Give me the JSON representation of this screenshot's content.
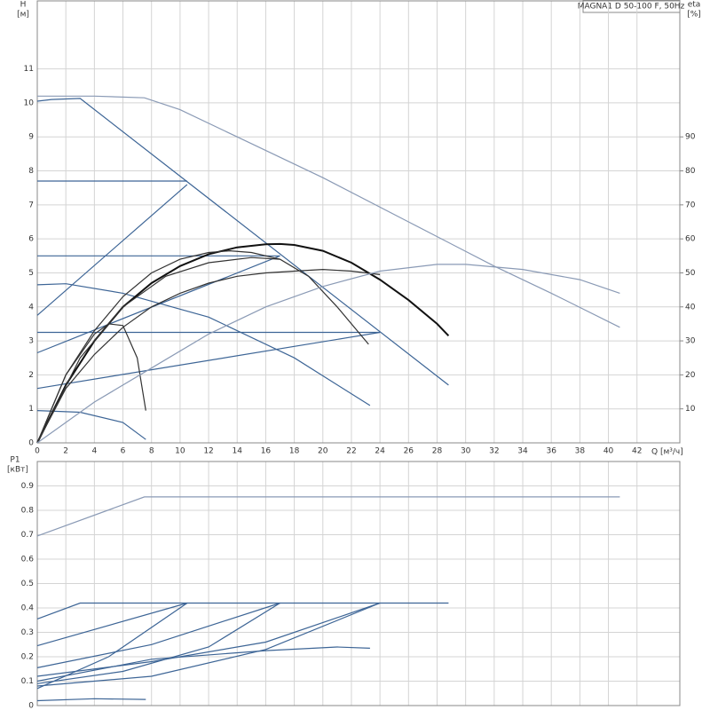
{
  "chart_data": [
    {
      "type": "line",
      "title": "MAGNA1 D 50-100 F, 50Hz",
      "y_label": "H",
      "y_unit": "[м]",
      "y2_label": "eta",
      "y2_unit": "[%]",
      "x_label": "Q [м³/ч]",
      "xlim": [
        0,
        45
      ],
      "xticks": [
        0,
        2,
        4,
        6,
        8,
        10,
        12,
        14,
        16,
        18,
        20,
        22,
        24,
        26,
        28,
        30,
        32,
        34,
        36,
        38,
        40,
        42
      ],
      "ylim": [
        0,
        13
      ],
      "yticks": [
        0,
        1,
        2,
        3,
        4,
        5,
        6,
        7,
        8,
        9,
        10,
        11
      ],
      "y2lim": [
        0,
        130
      ],
      "y2ticks": [
        10,
        20,
        30,
        40,
        50,
        60,
        70,
        80,
        90
      ],
      "grid": true,
      "series": [
        {
          "color": "#3d6596",
          "x": [
            0,
            1,
            3,
            28.8
          ],
          "values": [
            10.05,
            10.1,
            10.13,
            1.7
          ]
        },
        {
          "color": "#3d6596",
          "x": [
            0,
            10.5
          ],
          "values": [
            3.75,
            7.6
          ]
        },
        {
          "color": "#3d6596",
          "x": [
            0,
            17
          ],
          "values": [
            2.65,
            5.5
          ]
        },
        {
          "color": "#3d6596",
          "x": [
            0,
            24
          ],
          "values": [
            1.6,
            3.25
          ]
        },
        {
          "color": "#3d6596",
          "x": [
            0,
            10.5
          ],
          "values": [
            7.7,
            7.7
          ]
        },
        {
          "color": "#3d6596",
          "x": [
            0,
            17
          ],
          "values": [
            5.5,
            5.5
          ]
        },
        {
          "color": "#3d6596",
          "x": [
            0,
            24
          ],
          "values": [
            3.25,
            3.25
          ]
        },
        {
          "color": "#3d6596",
          "x": [
            0,
            2,
            6,
            12,
            18,
            23.3
          ],
          "values": [
            4.65,
            4.68,
            4.4,
            3.7,
            2.5,
            1.1
          ]
        },
        {
          "color": "#3d6596",
          "x": [
            0,
            3,
            6,
            7.6
          ],
          "values": [
            0.95,
            0.9,
            0.6,
            0.1
          ]
        },
        {
          "color": "#8a9ab5",
          "x": [
            0,
            4,
            7.5,
            10,
            14,
            20,
            26,
            32,
            36,
            40.8
          ],
          "values": [
            10.2,
            10.2,
            10.15,
            9.8,
            9,
            7.8,
            6.5,
            5.2,
            4.4,
            3.4
          ]
        },
        {
          "color": "#111111",
          "axis": "y2",
          "x": [
            0,
            2,
            4,
            6,
            8,
            10,
            12,
            14,
            16,
            17,
            18,
            20,
            22,
            24,
            26,
            28,
            28.8
          ],
          "values": [
            0,
            17,
            30,
            40,
            47,
            52,
            55.5,
            57.5,
            58.4,
            58.5,
            58.2,
            56.5,
            53,
            48,
            42,
            35,
            31.5
          ]
        },
        {
          "color": "#333333",
          "axis": "y2",
          "x": [
            0,
            2,
            4,
            6,
            8,
            10,
            12,
            13.5,
            15,
            17,
            19,
            21,
            23.2
          ],
          "values": [
            0,
            20,
            33,
            43,
            50,
            54,
            56,
            56.5,
            56,
            54,
            49,
            40,
            29
          ]
        },
        {
          "color": "#333333",
          "axis": "y2",
          "x": [
            0,
            2,
            4,
            6,
            8,
            10,
            12,
            14,
            16,
            18,
            20,
            22,
            24
          ],
          "values": [
            0,
            16,
            26,
            34,
            40,
            44,
            47,
            49,
            50,
            50.5,
            51,
            50.5,
            49.5
          ]
        },
        {
          "color": "#333333",
          "axis": "y2",
          "x": [
            0,
            3,
            6,
            9,
            12,
            15,
            17
          ],
          "values": [
            0,
            25,
            40,
            49,
            53,
            54.5,
            54
          ]
        },
        {
          "color": "#333333",
          "axis": "y2",
          "x": [
            0,
            2,
            4,
            5,
            6,
            7,
            7.6
          ],
          "values": [
            0,
            20,
            32,
            35,
            34.5,
            25,
            9.5
          ]
        },
        {
          "color": "#8a9ab5",
          "axis": "y2",
          "x": [
            0,
            4,
            8,
            12,
            16,
            20,
            24,
            28,
            30,
            34,
            38,
            40.8
          ],
          "values": [
            0,
            12,
            22,
            32,
            40,
            46,
            50.5,
            52.5,
            52.5,
            51,
            48,
            44
          ]
        }
      ]
    },
    {
      "type": "line",
      "y_label": "P1",
      "y_unit": "[кВт]",
      "ylim": [
        0,
        1.0
      ],
      "yticks": [
        0,
        0.1,
        0.2,
        0.3,
        0.4,
        0.5,
        0.6,
        0.7,
        0.8,
        0.9
      ],
      "grid": true,
      "series": [
        {
          "color": "#8a9ab5",
          "x": [
            0,
            7.5,
            40.8
          ],
          "values": [
            0.695,
            0.855,
            0.855
          ]
        },
        {
          "color": "#3d6596",
          "x": [
            0,
            3,
            28.8
          ],
          "values": [
            0.355,
            0.42,
            0.42
          ]
        },
        {
          "color": "#3d6596",
          "x": [
            0,
            10.5
          ],
          "values": [
            0.245,
            0.42
          ]
        },
        {
          "color": "#3d6596",
          "x": [
            0,
            8,
            17
          ],
          "values": [
            0.155,
            0.25,
            0.42
          ]
        },
        {
          "color": "#3d6596",
          "x": [
            0,
            5,
            10.5
          ],
          "values": [
            0.07,
            0.2,
            0.42
          ]
        },
        {
          "color": "#3d6596",
          "x": [
            0,
            8,
            16,
            24
          ],
          "values": [
            0.12,
            0.18,
            0.26,
            0.42
          ]
        },
        {
          "color": "#3d6596",
          "x": [
            0,
            6,
            12,
            17
          ],
          "values": [
            0.09,
            0.14,
            0.24,
            0.42
          ]
        },
        {
          "color": "#3d6596",
          "x": [
            0,
            8,
            16,
            24
          ],
          "values": [
            0.08,
            0.12,
            0.23,
            0.42
          ]
        },
        {
          "color": "#3d6596",
          "x": [
            0,
            8,
            16,
            21,
            23.3
          ],
          "values": [
            0.1,
            0.19,
            0.225,
            0.24,
            0.235
          ]
        },
        {
          "color": "#3d6596",
          "x": [
            0,
            4,
            7.6
          ],
          "values": [
            0.02,
            0.028,
            0.025
          ]
        }
      ]
    }
  ]
}
